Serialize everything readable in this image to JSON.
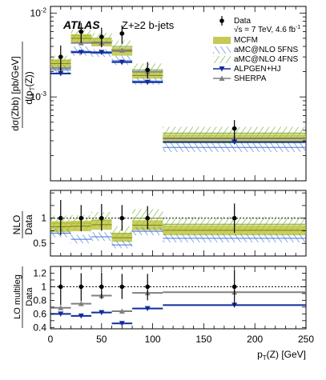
{
  "chart_data": {
    "type": "line",
    "atlas_label": "ATLAS",
    "process_label": "Z+≥2 b-jets",
    "energy_label": "√s = 7 TeV, 4.6 fb",
    "energy_label_sup": "-1",
    "x_label": "p",
    "x_label_sub": "T",
    "x_label_tail": "(Z) [GeV]",
    "x_range": [
      0,
      250
    ],
    "x_ticks": [
      0,
      50,
      100,
      150,
      200,
      250
    ],
    "bins": [
      [
        0,
        20
      ],
      [
        20,
        40
      ],
      [
        40,
        60
      ],
      [
        60,
        80
      ],
      [
        80,
        110
      ],
      [
        110,
        250
      ]
    ],
    "bin_centers": [
      10,
      30,
      50,
      70,
      95,
      180
    ],
    "legend": [
      {
        "name": "Data",
        "style": "data-point"
      },
      {
        "name": "MCFM",
        "style": "band-solid",
        "color": "#b5bd2a"
      },
      {
        "name": "aMC@NLO 5FNS",
        "style": "band-hatch-blue",
        "color": "#3d74d8"
      },
      {
        "name": "aMC@NLO 4FNS",
        "style": "band-hatch-green",
        "color": "#6fa62d"
      },
      {
        "name": "ALPGEN+HJ",
        "style": "triangle-down",
        "color": "#102c9a"
      },
      {
        "name": "SHERPA",
        "style": "triangle-up",
        "color": "#808080"
      }
    ],
    "top_panel": {
      "ylabel_main": "dσ(Zbb)",
      "ylabel_unit": "[pb/GeV]",
      "ylabel_denom": "d(p",
      "ylabel_denom_sub": "T",
      "ylabel_denom_tail": "(Z))",
      "y_scale": "log",
      "y_range": [
        0.0001,
        0.012
      ],
      "y_major_ticks": [
        {
          "value": 0.01,
          "base": "10",
          "exp": "-2"
        },
        {
          "value": 0.001,
          "base": "10",
          "exp": "-3"
        }
      ],
      "data": {
        "values": [
          0.003,
          0.006,
          0.0052,
          0.0057,
          0.0021,
          0.00042
        ],
        "err_low": [
          0.002,
          0.0044,
          0.0039,
          0.0043,
          0.00165,
          0.0003
        ],
        "err_high": [
          0.0041,
          0.0076,
          0.0067,
          0.0071,
          0.0026,
          0.00053
        ]
      },
      "mcfm": {
        "central": [
          0.0025,
          0.005,
          0.0045,
          0.0035,
          0.0018,
          0.00032
        ],
        "low": [
          0.0022,
          0.0045,
          0.004,
          0.0031,
          0.00165,
          0.00028
        ],
        "high": [
          0.0028,
          0.0056,
          0.005,
          0.0039,
          0.002,
          0.00036
        ]
      },
      "amcnlo_5fns": {
        "central": [
          0.0021,
          0.0035,
          0.0033,
          0.0027,
          0.00155,
          0.00025
        ],
        "low": [
          0.0019,
          0.0031,
          0.003,
          0.0024,
          0.0014,
          0.00022
        ],
        "high": [
          0.0024,
          0.004,
          0.0037,
          0.0031,
          0.0017,
          0.00029
        ]
      },
      "amcnlo_4fns": {
        "central": [
          0.0027,
          0.0054,
          0.005,
          0.004,
          0.0021,
          0.00037
        ],
        "low": [
          0.0024,
          0.0046,
          0.0043,
          0.0034,
          0.0018,
          0.00031
        ],
        "high": [
          0.0031,
          0.0063,
          0.0058,
          0.0047,
          0.0025,
          0.00044
        ]
      },
      "alpgen_hj": [
        0.0019,
        0.0034,
        0.0034,
        0.0026,
        0.0015,
        0.00029
      ],
      "sherpa": [
        0.0022,
        0.0044,
        0.0044,
        0.0036,
        0.002,
        0.00032
      ]
    },
    "nlo_panel": {
      "ylabel_num": "NLO",
      "ylabel_den": "Data",
      "y_range": [
        0.25,
        1.55
      ],
      "y_ticks": [
        0.5,
        1
      ],
      "reference_line": 1,
      "data_err_low": [
        0.66,
        0.74,
        0.75,
        0.75,
        0.78,
        0.71
      ],
      "data_err_high": [
        1.36,
        1.26,
        1.28,
        1.26,
        1.24,
        1.29
      ],
      "mcfm": {
        "central": [
          0.83,
          0.84,
          0.87,
          0.61,
          0.86,
          0.76
        ],
        "low": [
          0.72,
          0.74,
          0.77,
          0.53,
          0.76,
          0.66
        ],
        "high": [
          0.94,
          0.95,
          0.97,
          0.7,
          0.96,
          0.86
        ]
      },
      "amcnlo_5fns": {
        "central": [
          0.7,
          0.58,
          0.63,
          0.47,
          0.74,
          0.6
        ],
        "low": [
          0.62,
          0.5,
          0.55,
          0.4,
          0.66,
          0.52
        ],
        "high": [
          0.79,
          0.67,
          0.72,
          0.56,
          0.83,
          0.69
        ]
      },
      "amcnlo_4fns": {
        "central": [
          0.9,
          0.9,
          0.96,
          0.7,
          1.0,
          0.88
        ],
        "low": [
          0.78,
          0.76,
          0.82,
          0.6,
          0.86,
          0.74
        ],
        "high": [
          1.05,
          1.06,
          1.12,
          0.84,
          1.18,
          1.03
        ]
      }
    },
    "lo_panel": {
      "ylabel_num": "LO multileg",
      "ylabel_den": "Data",
      "y_range": [
        0.38,
        1.3
      ],
      "y_ticks": [
        0.4,
        0.6,
        0.8,
        1,
        1.2
      ],
      "reference_line": 1,
      "data_err_low": [
        0.73,
        0.79,
        0.82,
        0.82,
        0.8,
        0.73
      ],
      "data_err_high": [
        1.3,
        1.2,
        1.21,
        1.19,
        1.19,
        1.25
      ],
      "alpgen_hj": [
        0.6,
        0.57,
        0.62,
        0.46,
        0.68,
        0.73
      ],
      "sherpa": [
        0.69,
        0.75,
        0.87,
        0.64,
        0.91,
        0.92
      ]
    }
  }
}
